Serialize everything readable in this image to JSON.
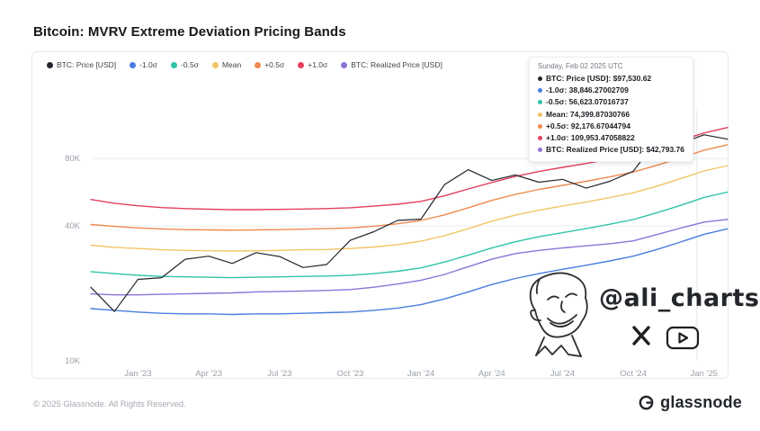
{
  "header": {
    "title": "Bitcoin: MVRV Extreme Deviation Pricing Bands"
  },
  "legend": {
    "items": [
      {
        "label": "BTC: Price [USD]",
        "color": "#23262e"
      },
      {
        "label": "-1.0σ",
        "color": "#4a7de0"
      },
      {
        "label": "-0.5σ",
        "color": "#2fc3a7"
      },
      {
        "label": "Mean",
        "color": "#f2c464"
      },
      {
        "label": "+0.5σ",
        "color": "#ef8a4e"
      },
      {
        "label": "+1.0σ",
        "color": "#e43f5f"
      },
      {
        "label": "BTC: Realized Price [USD]",
        "color": "#8e72d8"
      }
    ]
  },
  "tooltip": {
    "date": "Sunday, Feb 02 2025 UTC",
    "rows": [
      {
        "label": "BTC: Price [USD]",
        "value": "$97,530.62",
        "color": "#23262e"
      },
      {
        "label": "-1.0σ",
        "value": "38,846.27002709",
        "color": "#4a7de0"
      },
      {
        "label": "-0.5σ",
        "value": "56,623.07016737",
        "color": "#2fc3a7"
      },
      {
        "label": "Mean",
        "value": "74,399.87030766",
        "color": "#f2c464"
      },
      {
        "label": "+0.5σ",
        "value": "92,176.67044794",
        "color": "#ef8a4e"
      },
      {
        "label": "+1.0σ",
        "value": "109,953.47058822",
        "color": "#e43f5f"
      },
      {
        "label": "BTC: Realized Price [USD]",
        "value": "$42,793.76",
        "color": "#8e72d8"
      }
    ]
  },
  "watermark": {
    "handle": "@ali_charts"
  },
  "footer": {
    "copyright": "© 2025 Glassnode. All Rights Reserved.",
    "brand": "glassnode"
  },
  "chart_data": {
    "type": "line",
    "title": "Bitcoin: MVRV Extreme Deviation Pricing Bands",
    "y_scale": "log",
    "ylim": [
      10000,
      120000
    ],
    "grid": "horizontal",
    "legend_position": "top-left",
    "crosshair_x_fraction": 0.952,
    "y_ticks": [
      {
        "label": "10K",
        "value": 10000
      },
      {
        "label": "40K",
        "value": 40000
      },
      {
        "label": "80K",
        "value": 80000
      }
    ],
    "x": [
      "Nov '22",
      "Dec '22",
      "Jan '23",
      "Feb '23",
      "Mar '23",
      "Apr '23",
      "May '23",
      "Jun '23",
      "Jul '23",
      "Aug '23",
      "Sep '23",
      "Oct '23",
      "Nov '23",
      "Dec '23",
      "Jan '24",
      "Feb '24",
      "Mar '24",
      "Apr '24",
      "May '24",
      "Jun '24",
      "Jul '24",
      "Aug '24",
      "Sep '24",
      "Oct '24",
      "Nov '24",
      "Dec '24",
      "Jan '25",
      "Feb '25"
    ],
    "x_ticks": [
      {
        "label": "Jan '23",
        "index": 2
      },
      {
        "label": "Apr '23",
        "index": 5
      },
      {
        "label": "Jul '23",
        "index": 8
      },
      {
        "label": "Oct '23",
        "index": 11
      },
      {
        "label": "Jan '24",
        "index": 14
      },
      {
        "label": "Apr '24",
        "index": 17
      },
      {
        "label": "Jul '24",
        "index": 20
      },
      {
        "label": "Oct '24",
        "index": 23
      },
      {
        "label": "Jan '25",
        "index": 26
      }
    ],
    "series": [
      {
        "name": "BTC: Price [USD]",
        "color": "#23262e",
        "values": [
          21300,
          16600,
          23100,
          23500,
          28400,
          29300,
          27200,
          30400,
          29200,
          26100,
          26900,
          34500,
          37700,
          42300,
          42900,
          61200,
          71300,
          63800,
          67500,
          62700,
          64600,
          59000,
          63300,
          70200,
          96400,
          93400,
          102100,
          97531
        ]
      },
      {
        "name": "-1.0σ",
        "color": "#4a7de0",
        "values": [
          17100,
          16800,
          16500,
          16300,
          16200,
          16200,
          16100,
          16200,
          16200,
          16300,
          16400,
          16500,
          16800,
          17200,
          17800,
          18900,
          20300,
          21900,
          23300,
          24500,
          25600,
          26700,
          27900,
          29300,
          31400,
          33900,
          36700,
          38846
        ]
      },
      {
        "name": "-0.5σ",
        "color": "#2fc3a7",
        "values": [
          25000,
          24500,
          24100,
          23800,
          23700,
          23600,
          23500,
          23600,
          23700,
          23800,
          23900,
          24100,
          24500,
          25100,
          26000,
          27600,
          29600,
          31900,
          34000,
          35800,
          37300,
          38900,
          40700,
          42700,
          45800,
          49400,
          53600,
          56623
        ]
      },
      {
        "name": "Mean",
        "color": "#f2c464",
        "values": [
          32800,
          32100,
          31700,
          31300,
          31100,
          31000,
          30900,
          31000,
          31100,
          31300,
          31400,
          31700,
          32200,
          33000,
          34200,
          36200,
          38900,
          42000,
          44700,
          47000,
          49100,
          51100,
          53500,
          56200,
          60200,
          65000,
          70400,
          74400
        ]
      },
      {
        "name": "+0.5σ",
        "color": "#ef8a4e",
        "values": [
          40600,
          39800,
          39200,
          38800,
          38500,
          38400,
          38300,
          38400,
          38500,
          38700,
          38900,
          39200,
          39900,
          40900,
          42300,
          44800,
          48200,
          52000,
          55300,
          58200,
          60700,
          63300,
          66200,
          69600,
          74600,
          80400,
          87100,
          92177
        ]
      },
      {
        "name": "+1.0σ",
        "color": "#e43f5f",
        "values": [
          52500,
          50500,
          49200,
          48300,
          47800,
          47500,
          47300,
          47300,
          47400,
          47600,
          47800,
          48200,
          49000,
          50000,
          51500,
          54500,
          58500,
          62500,
          66500,
          70000,
          73000,
          76000,
          79500,
          83500,
          89500,
          96500,
          104000,
          109953
        ]
      },
      {
        "name": "BTC: Realized Price [USD]",
        "color": "#8e72d8",
        "values": [
          19900,
          19700,
          19700,
          19800,
          19900,
          20000,
          20100,
          20300,
          20400,
          20500,
          20600,
          20800,
          21300,
          22000,
          22900,
          24300,
          26300,
          28400,
          30100,
          31100,
          31900,
          32600,
          33300,
          34300,
          36600,
          39100,
          41600,
          42794
        ]
      }
    ]
  }
}
